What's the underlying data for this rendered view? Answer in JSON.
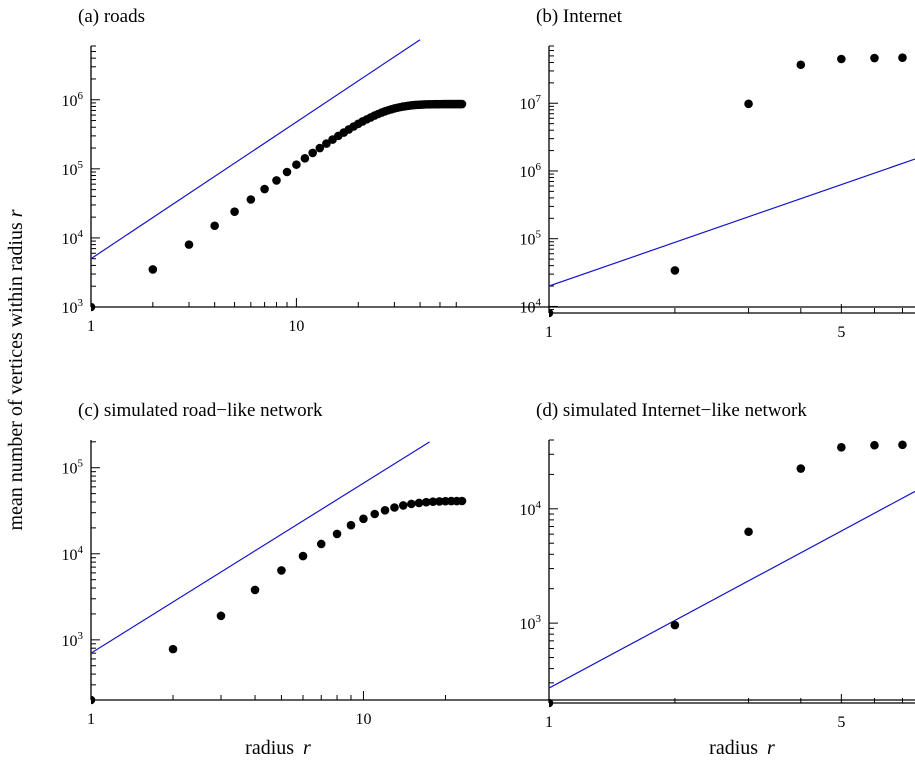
{
  "figure": {
    "ylabel_text": "mean number of vertices within radius",
    "ylabel_var": "r",
    "xlabel_text": "radius",
    "xlabel_var": "r"
  },
  "colors": {
    "fit_line": "#1414c8",
    "points": "#000000",
    "axes": "#000000"
  },
  "chart_data": [
    {
      "type": "scatter",
      "title": "(a) roads",
      "xscale": "log",
      "yscale": "log",
      "xlim": [
        1,
        64
      ],
      "ylim": [
        1000,
        6000000
      ],
      "xticks": [
        {
          "v": 1,
          "label": "1"
        },
        {
          "v": 10,
          "label": "10"
        }
      ],
      "yticks": [
        {
          "v": 1000,
          "base": "10",
          "exp": "3"
        },
        {
          "v": 10000,
          "base": "10",
          "exp": "4"
        },
        {
          "v": 100000,
          "base": "10",
          "exp": "5"
        },
        {
          "v": 1000000,
          "base": "10",
          "exp": "6"
        }
      ],
      "x": [
        1,
        2,
        3,
        4,
        5,
        6,
        7,
        8,
        9,
        10,
        11,
        12,
        13,
        14,
        15,
        16,
        17,
        18,
        19,
        20,
        21,
        22,
        23,
        24,
        25,
        26,
        27,
        28,
        29,
        30,
        31,
        32,
        33,
        34,
        35,
        36,
        37,
        38,
        39,
        40,
        41,
        42,
        43,
        44,
        45,
        46,
        47,
        48,
        49,
        50,
        51,
        52,
        53,
        54,
        55,
        56,
        57,
        58,
        59,
        60,
        61,
        62,
        63,
        64
      ],
      "y": [
        1000,
        3500,
        8000,
        15000,
        24000,
        36000,
        51000,
        68000,
        90000,
        115000,
        142000,
        170000,
        200000,
        232000,
        265000,
        300000,
        335000,
        372000,
        410000,
        448000,
        485000,
        520000,
        555000,
        590000,
        622000,
        652000,
        680000,
        705000,
        728000,
        748000,
        766000,
        782000,
        796000,
        808000,
        818000,
        827000,
        834000,
        840000,
        845000,
        849000,
        852000,
        855000,
        857000,
        859000,
        860000,
        861000,
        862000,
        863000,
        863500,
        864000,
        864500,
        865000,
        865200,
        865400,
        865600,
        865800,
        866000,
        866100,
        866200,
        866300,
        866400,
        866500,
        866600,
        866700
      ],
      "fit_line": {
        "x": [
          1,
          40
        ],
        "y": [
          5000,
          7400000
        ]
      }
    },
    {
      "type": "scatter",
      "title": "(b) Internet",
      "xscale": "log",
      "yscale": "log",
      "xlim": [
        1,
        7.5
      ],
      "ylim": [
        8000,
        70000000
      ],
      "xticks": [
        {
          "v": 1,
          "label": "1"
        },
        {
          "v": 5,
          "label": "5"
        }
      ],
      "yticks": [
        {
          "v": 10000,
          "base": "10",
          "exp": "4"
        },
        {
          "v": 100000,
          "base": "10",
          "exp": "5"
        },
        {
          "v": 1000000,
          "base": "10",
          "exp": "6"
        },
        {
          "v": 10000000,
          "base": "10",
          "exp": "7"
        }
      ],
      "x": [
        1,
        2,
        3,
        4,
        5,
        6,
        7,
        8
      ],
      "y": [
        8000,
        34000,
        9800000,
        37000000,
        45000000,
        46500000,
        47000000,
        47200000
      ],
      "fit_line": {
        "x": [
          1,
          7.5
        ],
        "y": [
          20000,
          1500000
        ]
      }
    },
    {
      "type": "scatter",
      "title": "(c) simulated road−like network",
      "xscale": "log",
      "yscale": "log",
      "xlim": [
        1,
        23
      ],
      "ylim": [
        200,
        210000
      ],
      "xticks": [
        {
          "v": 1,
          "label": "1"
        },
        {
          "v": 10,
          "label": "10"
        }
      ],
      "yticks": [
        {
          "v": 1000,
          "base": "10",
          "exp": "3"
        },
        {
          "v": 10000,
          "base": "10",
          "exp": "4"
        },
        {
          "v": 100000,
          "base": "10",
          "exp": "5"
        }
      ],
      "x": [
        1,
        2,
        3,
        4,
        5,
        6,
        7,
        8,
        9,
        10,
        11,
        12,
        13,
        14,
        15,
        16,
        17,
        18,
        19,
        20,
        21,
        22,
        23
      ],
      "y": [
        200,
        780,
        1900,
        3800,
        6400,
        9400,
        13000,
        17000,
        21500,
        25500,
        29000,
        32000,
        34500,
        36500,
        38000,
        39000,
        39800,
        40300,
        40600,
        40800,
        40950,
        41000,
        41050
      ],
      "fit_line": {
        "x": [
          1,
          17.5
        ],
        "y": [
          700,
          200000
        ]
      }
    },
    {
      "type": "scatter",
      "title": "(d) simulated Internet−like network",
      "xscale": "log",
      "yscale": "log",
      "xlim": [
        1,
        7.5
      ],
      "ylim": [
        200,
        40000
      ],
      "xticks": [
        {
          "v": 1,
          "label": "1"
        },
        {
          "v": 5,
          "label": "5"
        }
      ],
      "yticks": [
        {
          "v": 1000,
          "base": "10",
          "exp": "3"
        },
        {
          "v": 10000,
          "base": "10",
          "exp": "4"
        }
      ],
      "x": [
        1,
        2,
        3,
        4,
        5,
        6,
        7,
        8
      ],
      "y": [
        200,
        960,
        6300,
        22500,
        34500,
        36000,
        36300,
        36400
      ],
      "fit_line": {
        "x": [
          1,
          7.5
        ],
        "y": [
          270,
          14200
        ]
      }
    }
  ]
}
